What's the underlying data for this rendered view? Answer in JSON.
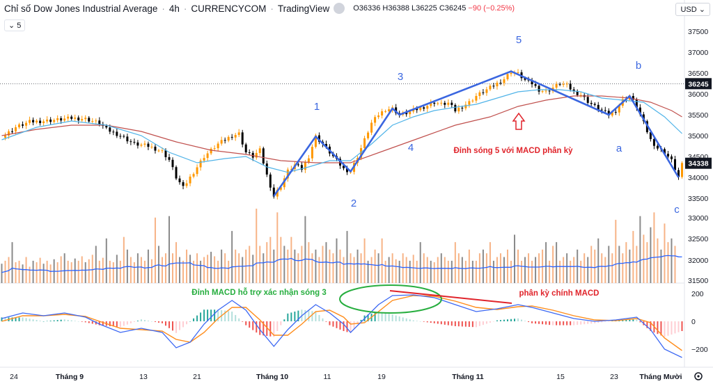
{
  "header": {
    "title": "Chỉ số Dow Jones Industrial Average",
    "interval": "4h",
    "source": "CURRENCYCOM",
    "platform": "TradingView",
    "open": "O36336",
    "high": "H36388",
    "low": "L36225",
    "close": "C36245",
    "change": "−90 (−0.25%)",
    "interval_control": "5",
    "currency": "USD"
  },
  "colors": {
    "up": "#ff9800",
    "down": "#000000",
    "ema_blue": "#4fb3e8",
    "ema_red": "#c0504d",
    "wave": "#3a66e0",
    "annotation_red": "#e0242b",
    "annotation_green": "#27ae3f",
    "macd_line": "#3b67f3",
    "signal_line": "#ff8c1a"
  },
  "chart_data": [
    {
      "type": "line",
      "title": "",
      "xlabel": "",
      "ylabel": "",
      "x_ticks": [
        "24",
        "Tháng 9",
        "13",
        "21",
        "Tháng 10",
        "11",
        "19",
        "Tháng 11",
        "15",
        "23",
        "Tháng Mười"
      ],
      "y_ticks": [
        33500,
        34000,
        34500,
        35000,
        35500,
        36000,
        36500,
        37000,
        37500
      ],
      "ylim": [
        33350,
        37800
      ],
      "price_labels": {
        "current": 36245,
        "last_close": 34338
      },
      "grid": false,
      "series": [
        {
          "name": "",
          "points": [
            [
              0,
              34950
            ],
            [
              4,
              35200
            ],
            [
              8,
              35330
            ],
            [
              12,
              35350
            ],
            [
              16,
              35380
            ],
            [
              20,
              35420
            ],
            [
              24,
              35400
            ],
            [
              28,
              35300
            ],
            [
              30,
              35150
            ],
            [
              34,
              35000
            ],
            [
              38,
              34800
            ],
            [
              42,
              34750
            ],
            [
              46,
              34620
            ],
            [
              48,
              34420
            ],
            [
              50,
              34000
            ],
            [
              52,
              33750
            ],
            [
              54,
              34000
            ],
            [
              58,
              34500
            ],
            [
              62,
              34800
            ],
            [
              66,
              35000
            ],
            [
              68,
              35050
            ],
            [
              70,
              34600
            ],
            [
              72,
              34500
            ],
            [
              74,
              34650
            ],
            [
              76,
              34050
            ],
            [
              78,
              33550
            ],
            [
              80,
              33800
            ],
            [
              82,
              34150
            ],
            [
              84,
              34300
            ],
            [
              86,
              34200
            ],
            [
              88,
              34500
            ],
            [
              90,
              34980
            ],
            [
              92,
              34800
            ],
            [
              94,
              34600
            ],
            [
              96,
              34400
            ],
            [
              98,
              34200
            ],
            [
              100,
              34140
            ],
            [
              102,
              34500
            ],
            [
              104,
              34900
            ],
            [
              106,
              35300
            ],
            [
              108,
              35500
            ],
            [
              110,
              35630
            ],
            [
              112,
              35650
            ],
            [
              114,
              35500
            ],
            [
              116,
              35540
            ],
            [
              118,
              35600
            ],
            [
              120,
              35660
            ],
            [
              122,
              35720
            ],
            [
              124,
              35800
            ],
            [
              126,
              35750
            ],
            [
              128,
              35780
            ],
            [
              130,
              35600
            ],
            [
              132,
              35700
            ],
            [
              134,
              35800
            ],
            [
              136,
              35950
            ],
            [
              138,
              36050
            ],
            [
              140,
              36150
            ],
            [
              142,
              36250
            ],
            [
              144,
              36360
            ],
            [
              146,
              36540
            ],
            [
              148,
              36480
            ],
            [
              150,
              36330
            ],
            [
              152,
              36250
            ],
            [
              154,
              36100
            ],
            [
              156,
              36050
            ],
            [
              158,
              36150
            ],
            [
              160,
              36250
            ],
            [
              162,
              36200
            ],
            [
              164,
              36050
            ],
            [
              166,
              35980
            ],
            [
              168,
              35820
            ],
            [
              170,
              35700
            ],
            [
              172,
              35600
            ],
            [
              174,
              35500
            ],
            [
              176,
              35600
            ],
            [
              178,
              35850
            ],
            [
              180,
              35950
            ],
            [
              182,
              35700
            ],
            [
              184,
              35300
            ],
            [
              186,
              34900
            ],
            [
              188,
              34700
            ],
            [
              190,
              34600
            ],
            [
              192,
              34400
            ],
            [
              194,
              34000
            ],
            [
              195,
              34300
            ]
          ]
        },
        {
          "name": "",
          "points": [
            [
              0,
              34900
            ],
            [
              10,
              35200
            ],
            [
              20,
              35350
            ],
            [
              30,
              35250
            ],
            [
              40,
              35000
            ],
            [
              48,
              34600
            ],
            [
              56,
              34350
            ],
            [
              64,
              34450
            ],
            [
              70,
              34500
            ],
            [
              76,
              34250
            ],
            [
              82,
              34120
            ],
            [
              88,
              34250
            ],
            [
              94,
              34400
            ],
            [
              100,
              34400
            ],
            [
              106,
              34800
            ],
            [
              112,
              35250
            ],
            [
              118,
              35450
            ],
            [
              124,
              35600
            ],
            [
              130,
              35680
            ],
            [
              136,
              35750
            ],
            [
              142,
              35900
            ],
            [
              148,
              36050
            ],
            [
              154,
              36100
            ],
            [
              160,
              36100
            ],
            [
              166,
              36050
            ],
            [
              172,
              35900
            ],
            [
              178,
              35850
            ],
            [
              184,
              35800
            ],
            [
              190,
              35450
            ],
            [
              195,
              35050
            ]
          ]
        },
        {
          "name": "",
          "points": [
            [
              0,
              35000
            ],
            [
              10,
              35150
            ],
            [
              20,
              35250
            ],
            [
              30,
              35250
            ],
            [
              40,
              35100
            ],
            [
              50,
              34850
            ],
            [
              60,
              34650
            ],
            [
              70,
              34550
            ],
            [
              80,
              34400
            ],
            [
              90,
              34350
            ],
            [
              100,
              34350
            ],
            [
              110,
              34650
            ],
            [
              120,
              34950
            ],
            [
              130,
              35250
            ],
            [
              140,
              35450
            ],
            [
              148,
              35700
            ],
            [
              156,
              35850
            ],
            [
              164,
              35950
            ],
            [
              172,
              35950
            ],
            [
              180,
              35900
            ],
            [
              186,
              35800
            ],
            [
              192,
              35600
            ],
            [
              195,
              35450
            ]
          ]
        }
      ],
      "wave_labels": [
        "1",
        "2",
        "3",
        "4",
        "5",
        "a",
        "b",
        "c"
      ],
      "annotations": [
        "Đỉnh sóng 5 với MACD phân kỳ"
      ]
    },
    {
      "type": "bar",
      "title": "",
      "xlabel": "",
      "ylabel": "",
      "y_ticks": [
        31500,
        32000,
        32500,
        33000
      ],
      "values": [
        0.26,
        0.3,
        0.35,
        0.55,
        0.28,
        0.3,
        0.25,
        0.35,
        0.22,
        0.3,
        0.28,
        0.34,
        0.26,
        0.3,
        0.25,
        0.32,
        0.28,
        0.36,
        0.4,
        0.3,
        0.28,
        0.33,
        0.3,
        0.36,
        0.28,
        0.32,
        0.38,
        0.5,
        0.3,
        0.34,
        0.6,
        0.3,
        0.28,
        0.38,
        0.3,
        0.62,
        0.45,
        0.35,
        0.28,
        0.4,
        0.35,
        0.3,
        0.45,
        0.32,
        0.88,
        0.5,
        0.35,
        0.4,
        0.9,
        0.4,
        0.55,
        0.35,
        0.3,
        0.45,
        0.38,
        0.3,
        0.4,
        0.3,
        0.35,
        0.38,
        0.42,
        0.36,
        0.3,
        0.45,
        0.4,
        0.3,
        0.7,
        0.45,
        0.4,
        0.35,
        0.45,
        0.5,
        0.38,
        1.0,
        0.5,
        0.4,
        0.55,
        0.62,
        0.45,
        0.95,
        0.62,
        0.5,
        0.45,
        0.62,
        0.45,
        0.4,
        0.5,
        0.9,
        0.55,
        0.4,
        0.45,
        0.35,
        0.5,
        0.55,
        0.45,
        0.4,
        0.6,
        0.45,
        0.35,
        0.7,
        0.4,
        0.35,
        0.45,
        0.4,
        0.6,
        0.3,
        0.35,
        0.45,
        0.4,
        0.6,
        0.3,
        0.35,
        0.4,
        0.32,
        0.3,
        0.4,
        0.35,
        0.3,
        0.38,
        0.3,
        0.55,
        0.4,
        0.35,
        0.3,
        0.28,
        0.35,
        0.4,
        0.35,
        0.3,
        0.3,
        0.55,
        0.4,
        0.35,
        0.3,
        0.45,
        0.3,
        0.3,
        0.4,
        0.45,
        0.4,
        0.55,
        0.3,
        0.35,
        0.4,
        0.35,
        0.45,
        0.3,
        0.65,
        0.45,
        0.3,
        0.35,
        0.4,
        0.3,
        0.35,
        0.4,
        0.45,
        0.55,
        0.3,
        0.5,
        0.55,
        0.3,
        0.35,
        0.4,
        0.3,
        0.35,
        0.45,
        0.3,
        0.4,
        0.35,
        0.5,
        0.45,
        0.6,
        0.4,
        0.35,
        0.5,
        0.4,
        0.85,
        0.5,
        0.4,
        0.55,
        0.45,
        0.7,
        0.5,
        0.9,
        0.65,
        0.55,
        0.75,
        0.95,
        0.6,
        0.45,
        0.8,
        0.55,
        0.6,
        0.5
      ],
      "annotations": [
        "Đỉnh MACD hỗ trợ xác nhận sóng 3"
      ]
    },
    {
      "type": "line",
      "title": "",
      "xlabel": "",
      "ylabel": "",
      "y_ticks": [
        200,
        0,
        -200
      ],
      "ylim": [
        -290,
        240
      ],
      "series": [
        {
          "name": "",
          "points": [
            [
              0,
              20
            ],
            [
              6,
              60
            ],
            [
              12,
              40
            ],
            [
              18,
              60
            ],
            [
              24,
              30
            ],
            [
              28,
              -20
            ],
            [
              34,
              -80
            ],
            [
              40,
              -50
            ],
            [
              46,
              -80
            ],
            [
              50,
              -190
            ],
            [
              54,
              -150
            ],
            [
              58,
              -20
            ],
            [
              62,
              80
            ],
            [
              66,
              150
            ],
            [
              70,
              80
            ],
            [
              74,
              -60
            ],
            [
              78,
              -180
            ],
            [
              82,
              -60
            ],
            [
              86,
              40
            ],
            [
              90,
              120
            ],
            [
              94,
              60
            ],
            [
              98,
              -20
            ],
            [
              100,
              -80
            ],
            [
              104,
              20
            ],
            [
              108,
              120
            ],
            [
              112,
              185
            ],
            [
              118,
              190
            ],
            [
              124,
              170
            ],
            [
              130,
              120
            ],
            [
              136,
              70
            ],
            [
              142,
              90
            ],
            [
              148,
              120
            ],
            [
              152,
              100
            ],
            [
              158,
              60
            ],
            [
              164,
              20
            ],
            [
              170,
              0
            ],
            [
              176,
              10
            ],
            [
              182,
              30
            ],
            [
              186,
              -60
            ],
            [
              190,
              -200
            ],
            [
              195,
              -260
            ]
          ]
        },
        {
          "name": "",
          "points": [
            [
              0,
              0
            ],
            [
              6,
              40
            ],
            [
              12,
              40
            ],
            [
              18,
              50
            ],
            [
              24,
              35
            ],
            [
              28,
              0
            ],
            [
              34,
              -50
            ],
            [
              40,
              -60
            ],
            [
              46,
              -70
            ],
            [
              50,
              -130
            ],
            [
              54,
              -150
            ],
            [
              58,
              -80
            ],
            [
              62,
              20
            ],
            [
              66,
              100
            ],
            [
              70,
              100
            ],
            [
              74,
              10
            ],
            [
              78,
              -100
            ],
            [
              82,
              -100
            ],
            [
              86,
              -20
            ],
            [
              90,
              70
            ],
            [
              94,
              80
            ],
            [
              98,
              30
            ],
            [
              100,
              -20
            ],
            [
              104,
              -10
            ],
            [
              108,
              70
            ],
            [
              112,
              150
            ],
            [
              118,
              185
            ],
            [
              124,
              180
            ],
            [
              130,
              145
            ],
            [
              136,
              100
            ],
            [
              142,
              85
            ],
            [
              148,
              105
            ],
            [
              152,
              110
            ],
            [
              158,
              80
            ],
            [
              164,
              40
            ],
            [
              170,
              10
            ],
            [
              176,
              5
            ],
            [
              182,
              20
            ],
            [
              186,
              -10
            ],
            [
              190,
              -120
            ],
            [
              195,
              -210
            ]
          ]
        }
      ],
      "annotations": [
        "phân kỳ chính MACD"
      ]
    }
  ]
}
